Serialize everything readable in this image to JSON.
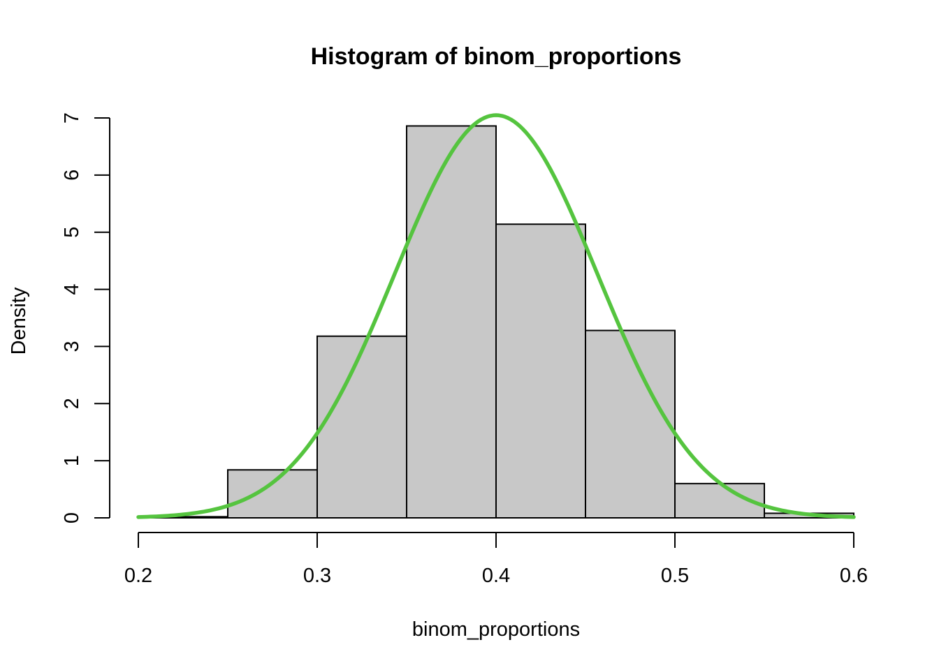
{
  "chart_data": {
    "type": "bar",
    "subtype": "histogram-with-density-curve",
    "title": "Histogram of binom_proportions",
    "xlabel": "binom_proportions",
    "ylabel": "Density",
    "xlim": [
      0.2,
      0.6
    ],
    "ylim": [
      0,
      7
    ],
    "x_ticks": [
      0.2,
      0.3,
      0.4,
      0.5,
      0.6
    ],
    "x_tick_labels": [
      "0.2",
      "0.3",
      "0.4",
      "0.5",
      "0.6"
    ],
    "y_ticks": [
      0,
      1,
      2,
      3,
      4,
      5,
      6,
      7
    ],
    "y_tick_labels": [
      "0",
      "1",
      "2",
      "3",
      "4",
      "5",
      "6",
      "7"
    ],
    "bins": [
      {
        "start": 0.2,
        "end": 0.25,
        "density": 0.02
      },
      {
        "start": 0.25,
        "end": 0.3,
        "density": 0.84
      },
      {
        "start": 0.3,
        "end": 0.35,
        "density": 3.18
      },
      {
        "start": 0.35,
        "end": 0.4,
        "density": 6.86
      },
      {
        "start": 0.4,
        "end": 0.45,
        "density": 5.14
      },
      {
        "start": 0.45,
        "end": 0.5,
        "density": 3.28
      },
      {
        "start": 0.5,
        "end": 0.55,
        "density": 0.6
      },
      {
        "start": 0.55,
        "end": 0.6,
        "density": 0.08
      }
    ],
    "curve": {
      "type": "normal-density",
      "mean": 0.4,
      "sd": 0.0566,
      "x_range": [
        0.2,
        0.6
      ],
      "color": "#55c43f"
    },
    "bar_fill": "#c8c8c8",
    "bar_stroke": "#000000",
    "grid": false,
    "legend": "none"
  }
}
